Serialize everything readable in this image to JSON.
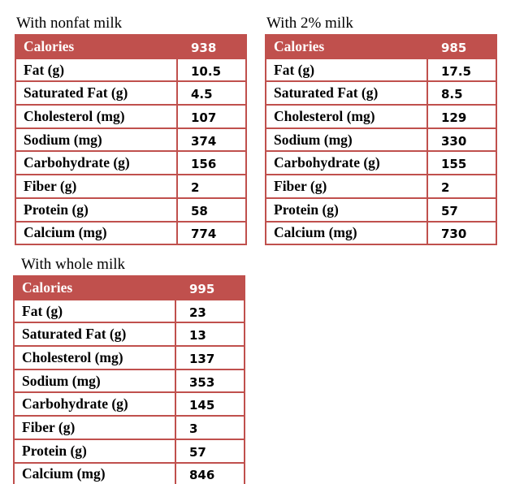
{
  "tables": [
    {
      "title": "With nonfat milk",
      "header": [
        "Calories",
        "938"
      ],
      "rows": [
        [
          "Fat (g)",
          "10.5"
        ],
        [
          "Saturated Fat (g)",
          "4.5"
        ],
        [
          "Cholesterol (mg)",
          "107"
        ],
        [
          "Sodium (mg)",
          "374"
        ],
        [
          "Carbohydrate (g)",
          "156"
        ],
        [
          "Fiber (g)",
          "2"
        ],
        [
          "Protein (g)",
          "58"
        ],
        [
          "Calcium (mg)",
          "774"
        ]
      ]
    },
    {
      "title": "With 2% milk",
      "header": [
        "Calories",
        "985"
      ],
      "rows": [
        [
          "Fat (g)",
          "17.5"
        ],
        [
          "Saturated Fat (g)",
          "8.5"
        ],
        [
          "Cholesterol (mg)",
          "129"
        ],
        [
          "Sodium (mg)",
          "330"
        ],
        [
          "Carbohydrate (g)",
          "155"
        ],
        [
          "Fiber (g)",
          "2"
        ],
        [
          "Protein (g)",
          "57"
        ],
        [
          "Calcium (mg)",
          "730"
        ]
      ]
    },
    {
      "title": "With whole milk",
      "header": [
        "Calories",
        "995"
      ],
      "rows": [
        [
          "Fat (g)",
          "23"
        ],
        [
          "Saturated Fat (g)",
          "13"
        ],
        [
          "Cholesterol (mg)",
          "137"
        ],
        [
          "Sodium (mg)",
          "353"
        ],
        [
          "Carbohydrate (g)",
          "145"
        ],
        [
          "Fiber (g)",
          "3"
        ],
        [
          "Protein (g)",
          "57"
        ],
        [
          "Calcium (mg)",
          "846"
        ]
      ]
    }
  ]
}
